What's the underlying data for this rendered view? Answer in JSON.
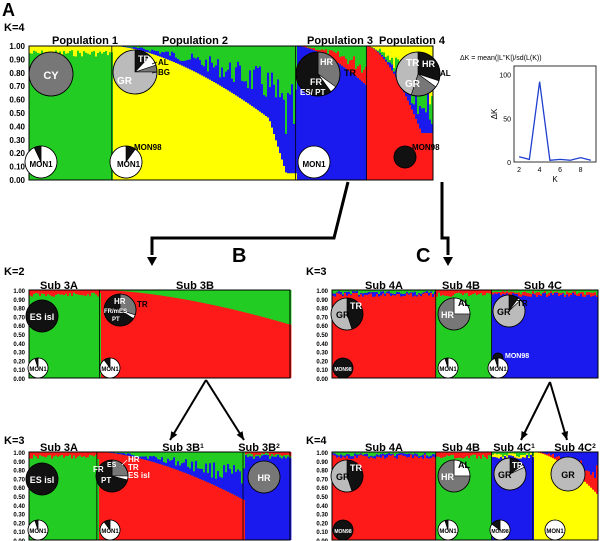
{
  "figure": {
    "panel_labels": [
      "A",
      "B",
      "C"
    ]
  },
  "colors": {
    "green": "#22cc22",
    "yellow": "#ffff00",
    "blue": "#1a1aee",
    "red": "#ff1a1a",
    "pie_dark": "#111111",
    "pie_mid": "#777777",
    "pie_light": "#bbbbbb",
    "pie_white": "#ffffff",
    "inset_line": "#1f3fcf"
  },
  "chart_data": [
    {
      "id": "A",
      "type": "bar",
      "title": "K=4",
      "ylim": [
        0,
        1
      ],
      "yticks": [
        "1.00",
        "0.90",
        "0.80",
        "0.70",
        "0.60",
        "0.50",
        "0.40",
        "0.30",
        "0.20",
        "0.10",
        "0.00"
      ],
      "groups": [
        {
          "label": "Population 1",
          "dominant": "green"
        },
        {
          "label": "Population 2",
          "dominant": "yellow"
        },
        {
          "label": "Population 3",
          "dominant": "blue"
        },
        {
          "label": "Population 4",
          "dominant": "red"
        }
      ],
      "pie_labels": [
        "CY",
        "MON1",
        "TR",
        "AL",
        "BG",
        "GR",
        "MON98",
        "MON1",
        "HR",
        "TR",
        "FR",
        "ES",
        "PT",
        "MON1",
        "TR",
        "HR",
        "AL",
        "GR",
        "MON98",
        "MON1"
      ]
    },
    {
      "id": "A-inset",
      "type": "line",
      "title": "ΔK = mean(|L''K|)/sd(L(K))",
      "xlabel": "K",
      "ylabel": "ΔK",
      "xticks": [
        "2",
        "4",
        "6",
        "8"
      ],
      "yticks": [
        "0",
        "50",
        "100"
      ],
      "xlim": [
        1.5,
        9.5
      ],
      "ylim": [
        0,
        110
      ],
      "x": [
        2,
        3,
        4,
        5,
        6,
        7,
        8,
        9
      ],
      "values": [
        6,
        3,
        92,
        2,
        3,
        2,
        5,
        2
      ]
    },
    {
      "id": "B-K2",
      "type": "bar",
      "title": "K=2",
      "ylim": [
        0,
        1
      ],
      "yticks": [
        "1.00",
        "0.90",
        "0.80",
        "0.70",
        "0.60",
        "0.50",
        "0.40",
        "0.30",
        "0.20",
        "0.10",
        "0.00"
      ],
      "groups": [
        {
          "label": "Sub 3A",
          "dominant": "green"
        },
        {
          "label": "Sub 3B",
          "dominant": "red"
        }
      ],
      "pie_labels": [
        "ES isl",
        "MON1",
        "HR",
        "TR",
        "FR",
        "ES",
        "PT",
        "MON1"
      ]
    },
    {
      "id": "C-K3",
      "type": "bar",
      "title": "K=3",
      "ylim": [
        0,
        1
      ],
      "yticks": [
        "1.00",
        "0.90",
        "0.80",
        "0.70",
        "0.60",
        "0.50",
        "0.40",
        "0.30",
        "0.20",
        "0.10",
        "0.00"
      ],
      "groups": [
        {
          "label": "Sub 4A",
          "dominant": "red"
        },
        {
          "label": "Sub 4B",
          "dominant": "green"
        },
        {
          "label": "Sub 4C",
          "dominant": "blue"
        }
      ],
      "pie_labels": [
        "GR",
        "TR",
        "MON98",
        "HR",
        "AL",
        "MON1",
        "GR",
        "TR",
        "MON98",
        "MON1"
      ]
    },
    {
      "id": "B-K3",
      "type": "bar",
      "title": "K=3",
      "ylim": [
        0,
        1
      ],
      "yticks": [
        "1.00",
        "0.90",
        "0.80",
        "0.70",
        "0.60",
        "0.50",
        "0.40",
        "0.30",
        "0.20",
        "0.10",
        "0.00"
      ],
      "groups": [
        {
          "label": "Sub 3A",
          "dominant": "green"
        },
        {
          "label": "Sub 3B",
          "sup": "1",
          "dominant": "red"
        },
        {
          "label": "Sub 3B",
          "sup": "2",
          "dominant": "blue"
        }
      ],
      "pie_labels": [
        "ES isl",
        "MON1",
        "ES",
        "FR",
        "PT",
        "HR",
        "TR",
        "ES isl",
        "MON1",
        "HR"
      ]
    },
    {
      "id": "C-K4",
      "type": "bar",
      "title": "K=4",
      "ylim": [
        0,
        1
      ],
      "yticks": [
        "1.00",
        "0.90",
        "0.80",
        "0.70",
        "0.60",
        "0.50",
        "0.40",
        "0.30",
        "0.20",
        "0.10",
        "0.00"
      ],
      "groups": [
        {
          "label": "Sub 4A",
          "dominant": "red"
        },
        {
          "label": "Sub 4B",
          "dominant": "green"
        },
        {
          "label": "Sub 4C",
          "sup": "1",
          "dominant": "blue"
        },
        {
          "label": "Sub 4C",
          "sup": "2",
          "dominant": "yellow"
        }
      ],
      "pie_labels": [
        "GR",
        "TR",
        "MON98",
        "HR",
        "AL",
        "MON1",
        "GR",
        "TR",
        "MON98",
        "MON1",
        "GR",
        "MON1"
      ]
    }
  ]
}
